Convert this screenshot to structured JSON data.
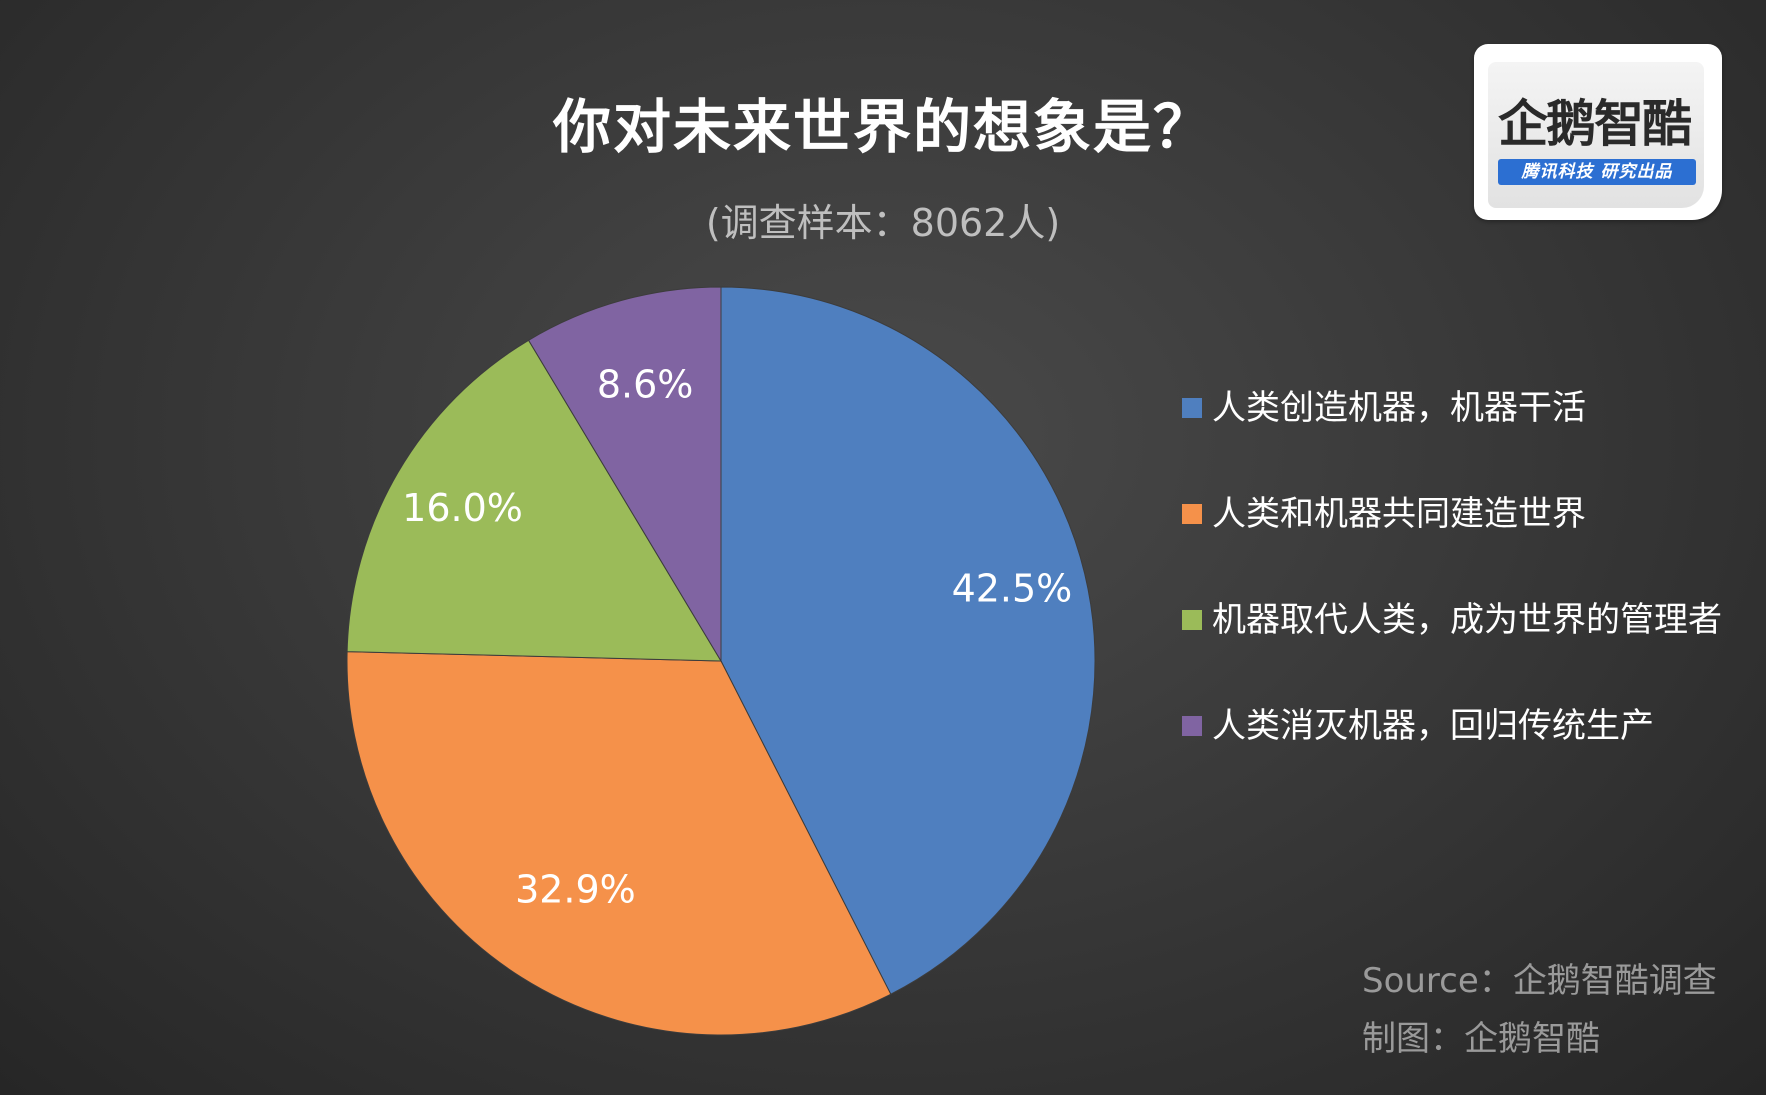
{
  "colors": {
    "blue": "#4f7fbf",
    "orange": "#f5914a",
    "green": "#9bbb59",
    "purple": "#8064a2"
  },
  "logo": {
    "name": "企鹅智酷",
    "tagline": "腾讯科技 研究出品"
  },
  "chart_data": {
    "type": "pie",
    "title": "你对未来世界的想象是？",
    "subtitle": "(调查样本：8062人)",
    "legend_position": "right",
    "slices": [
      {
        "label": "人类创造机器，机器干活",
        "value": 42.5,
        "display": "42.5%",
        "color": "#4f7fbf"
      },
      {
        "label": "人类和机器共同建造世界",
        "value": 32.9,
        "display": "32.9%",
        "color": "#f5914a"
      },
      {
        "label": "机器取代人类，成为世界的管理者",
        "value": 16.0,
        "display": "16.0%",
        "color": "#9bbb59"
      },
      {
        "label": "人类消灭机器，回归传统生产",
        "value": 8.6,
        "display": "8.6%",
        "color": "#8064a2"
      }
    ]
  },
  "footer": {
    "source": "Source：企鹅智酷调查",
    "credit": "制图：企鹅智酷"
  }
}
